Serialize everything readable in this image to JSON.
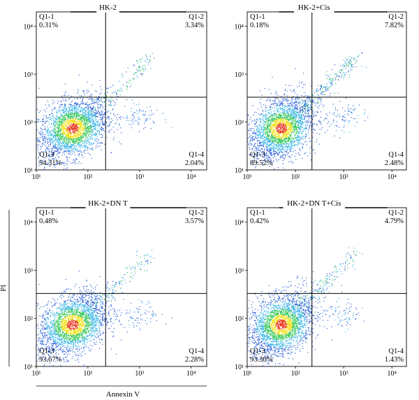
{
  "figure": {
    "y_axis_label": "PI",
    "x_axis_label": "Annexin V"
  },
  "chart_data": [
    {
      "type": "scatter",
      "title": "HK-2",
      "axis_scale": "log",
      "xlim": [
        10,
        20000
      ],
      "ylim": [
        10,
        20000
      ],
      "x_ticks": [
        "10¹",
        "10²",
        "10³",
        "10⁴"
      ],
      "y_ticks": [
        "10¹",
        "10²",
        "10³",
        "10⁴"
      ],
      "gates": {
        "x": 220,
        "y": 330
      },
      "quadrants": [
        {
          "name": "Q1-1",
          "percent": "0.31%"
        },
        {
          "name": "Q1-2",
          "percent": "3.34%"
        },
        {
          "name": "Q1-3",
          "percent": "94.31%"
        },
        {
          "name": "Q1-4",
          "percent": "2.04%"
        }
      ]
    },
    {
      "type": "scatter",
      "title": "HK-2+Cis",
      "axis_scale": "log",
      "xlim": [
        10,
        20000
      ],
      "ylim": [
        10,
        20000
      ],
      "x_ticks": [
        "10¹",
        "10²",
        "10³",
        "10⁴"
      ],
      "y_ticks": [
        "10¹",
        "10²",
        "10³",
        "10⁴"
      ],
      "gates": {
        "x": 220,
        "y": 330
      },
      "quadrants": [
        {
          "name": "Q1-1",
          "percent": "0.18%"
        },
        {
          "name": "Q1-2",
          "percent": "7.82%"
        },
        {
          "name": "Q1-3",
          "percent": "89.52%"
        },
        {
          "name": "Q1-4",
          "percent": "2.48%"
        }
      ]
    },
    {
      "type": "scatter",
      "title": "HK-2+DN T",
      "axis_scale": "log",
      "xlim": [
        10,
        20000
      ],
      "ylim": [
        10,
        20000
      ],
      "x_ticks": [
        "10¹",
        "10²",
        "10³",
        "10⁴"
      ],
      "y_ticks": [
        "10¹",
        "10²",
        "10³",
        "10⁴"
      ],
      "gates": {
        "x": 220,
        "y": 330
      },
      "quadrants": [
        {
          "name": "Q1-1",
          "percent": "0.48%"
        },
        {
          "name": "Q1-2",
          "percent": "3.57%"
        },
        {
          "name": "Q1-3",
          "percent": "93.67%"
        },
        {
          "name": "Q1-4",
          "percent": "2.28%"
        }
      ]
    },
    {
      "type": "scatter",
      "title": "HK-2+DN T+Cis",
      "axis_scale": "log",
      "xlim": [
        10,
        20000
      ],
      "ylim": [
        10,
        20000
      ],
      "x_ticks": [
        "10¹",
        "10²",
        "10³",
        "10⁴"
      ],
      "y_ticks": [
        "10¹",
        "10²",
        "10³",
        "10⁴"
      ],
      "gates": {
        "x": 220,
        "y": 330
      },
      "quadrants": [
        {
          "name": "Q1-1",
          "percent": "0.42%"
        },
        {
          "name": "Q1-2",
          "percent": "4.79%"
        },
        {
          "name": "Q1-3",
          "percent": "93.36%"
        },
        {
          "name": "Q1-4",
          "percent": "1.43%"
        }
      ]
    }
  ],
  "colors": {
    "density_low": "#2b5fd9",
    "density_mid_low": "#35b5e5",
    "density_mid": "#34c759",
    "density_high": "#f2e01c",
    "density_peak": "#e8321d",
    "gate_line": "#000000"
  }
}
